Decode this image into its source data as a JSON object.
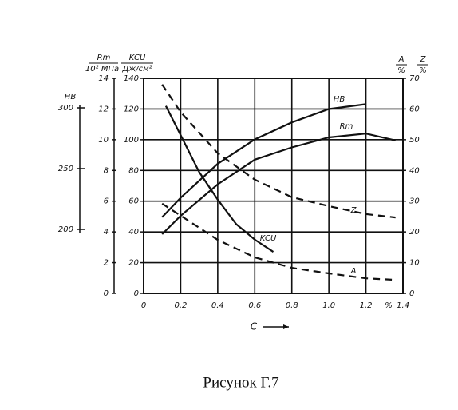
{
  "chart_data": {
    "type": "line",
    "caption": "Рисунок Г.7",
    "xlabel": "C",
    "x_unit": "%",
    "xlim": [
      0,
      1.4
    ],
    "xticks": [
      0,
      {
        "value": 0.2,
        "label": "0,2"
      },
      {
        "value": 0.4,
        "label": "0,4"
      },
      {
        "value": 0.6,
        "label": "0,6"
      },
      {
        "value": 0.8,
        "label": "0,8"
      },
      {
        "value": 1.0,
        "label": "1,0"
      },
      {
        "value": 1.2,
        "label": "1,2"
      },
      {
        "value": 1.4,
        "label": "1,4"
      }
    ],
    "grid": true,
    "axes": {
      "hb": {
        "title": "HB",
        "ylim": [
          200,
          300
        ],
        "yticks": [
          200,
          250,
          300
        ]
      },
      "rm": {
        "title": "Rm",
        "unit": "10² МПа",
        "ylim": [
          0,
          14
        ],
        "yticks": [
          0,
          2,
          4,
          6,
          8,
          10,
          12,
          14
        ]
      },
      "kcu": {
        "title": "KCU",
        "unit": "Дж/см²",
        "ylim": [
          0,
          140
        ],
        "yticks": [
          0,
          20,
          40,
          60,
          80,
          100,
          120,
          140
        ]
      },
      "az": {
        "titles": [
          "A",
          "Z"
        ],
        "unit": "%",
        "ylim": [
          0,
          70
        ],
        "yticks": [
          0,
          10,
          20,
          30,
          40,
          50,
          60,
          70
        ]
      }
    },
    "series": [
      {
        "name": "HB",
        "axis": "hb",
        "color": "#111",
        "dashed": false,
        "x": [
          0.1,
          0.2,
          0.4,
          0.6,
          0.8,
          1.0,
          1.2
        ],
        "values": [
          210,
          226,
          254,
          274,
          288,
          299,
          303
        ]
      },
      {
        "name": "Rm",
        "axis": "rm",
        "color": "#111",
        "dashed": false,
        "x": [
          0.1,
          0.2,
          0.4,
          0.6,
          0.8,
          1.0,
          1.2,
          1.36
        ],
        "values": [
          3.85,
          5.05,
          7.1,
          8.7,
          9.5,
          10.15,
          10.4,
          9.95
        ]
      },
      {
        "name": "KCU",
        "axis": "kcu",
        "color": "#111",
        "dashed": false,
        "x": [
          0.12,
          0.2,
          0.3,
          0.4,
          0.5,
          0.6,
          0.7
        ],
        "values": [
          122,
          103,
          79,
          61,
          45,
          35,
          27
        ]
      },
      {
        "name": "Z",
        "axis": "az",
        "color": "#111",
        "dashed": true,
        "x": [
          0.1,
          0.2,
          0.4,
          0.6,
          0.8,
          1.0,
          1.2,
          1.36
        ],
        "values": [
          68,
          59,
          45.6,
          37,
          31.3,
          28.4,
          25.8,
          24.7
        ]
      },
      {
        "name": "A",
        "axis": "az",
        "color": "#111",
        "dashed": true,
        "x": [
          0.1,
          0.2,
          0.4,
          0.6,
          0.8,
          1.0,
          1.2,
          1.36
        ],
        "values": [
          29.2,
          25.3,
          17.4,
          11.7,
          8.3,
          6.5,
          4.9,
          4.4
        ]
      }
    ]
  }
}
